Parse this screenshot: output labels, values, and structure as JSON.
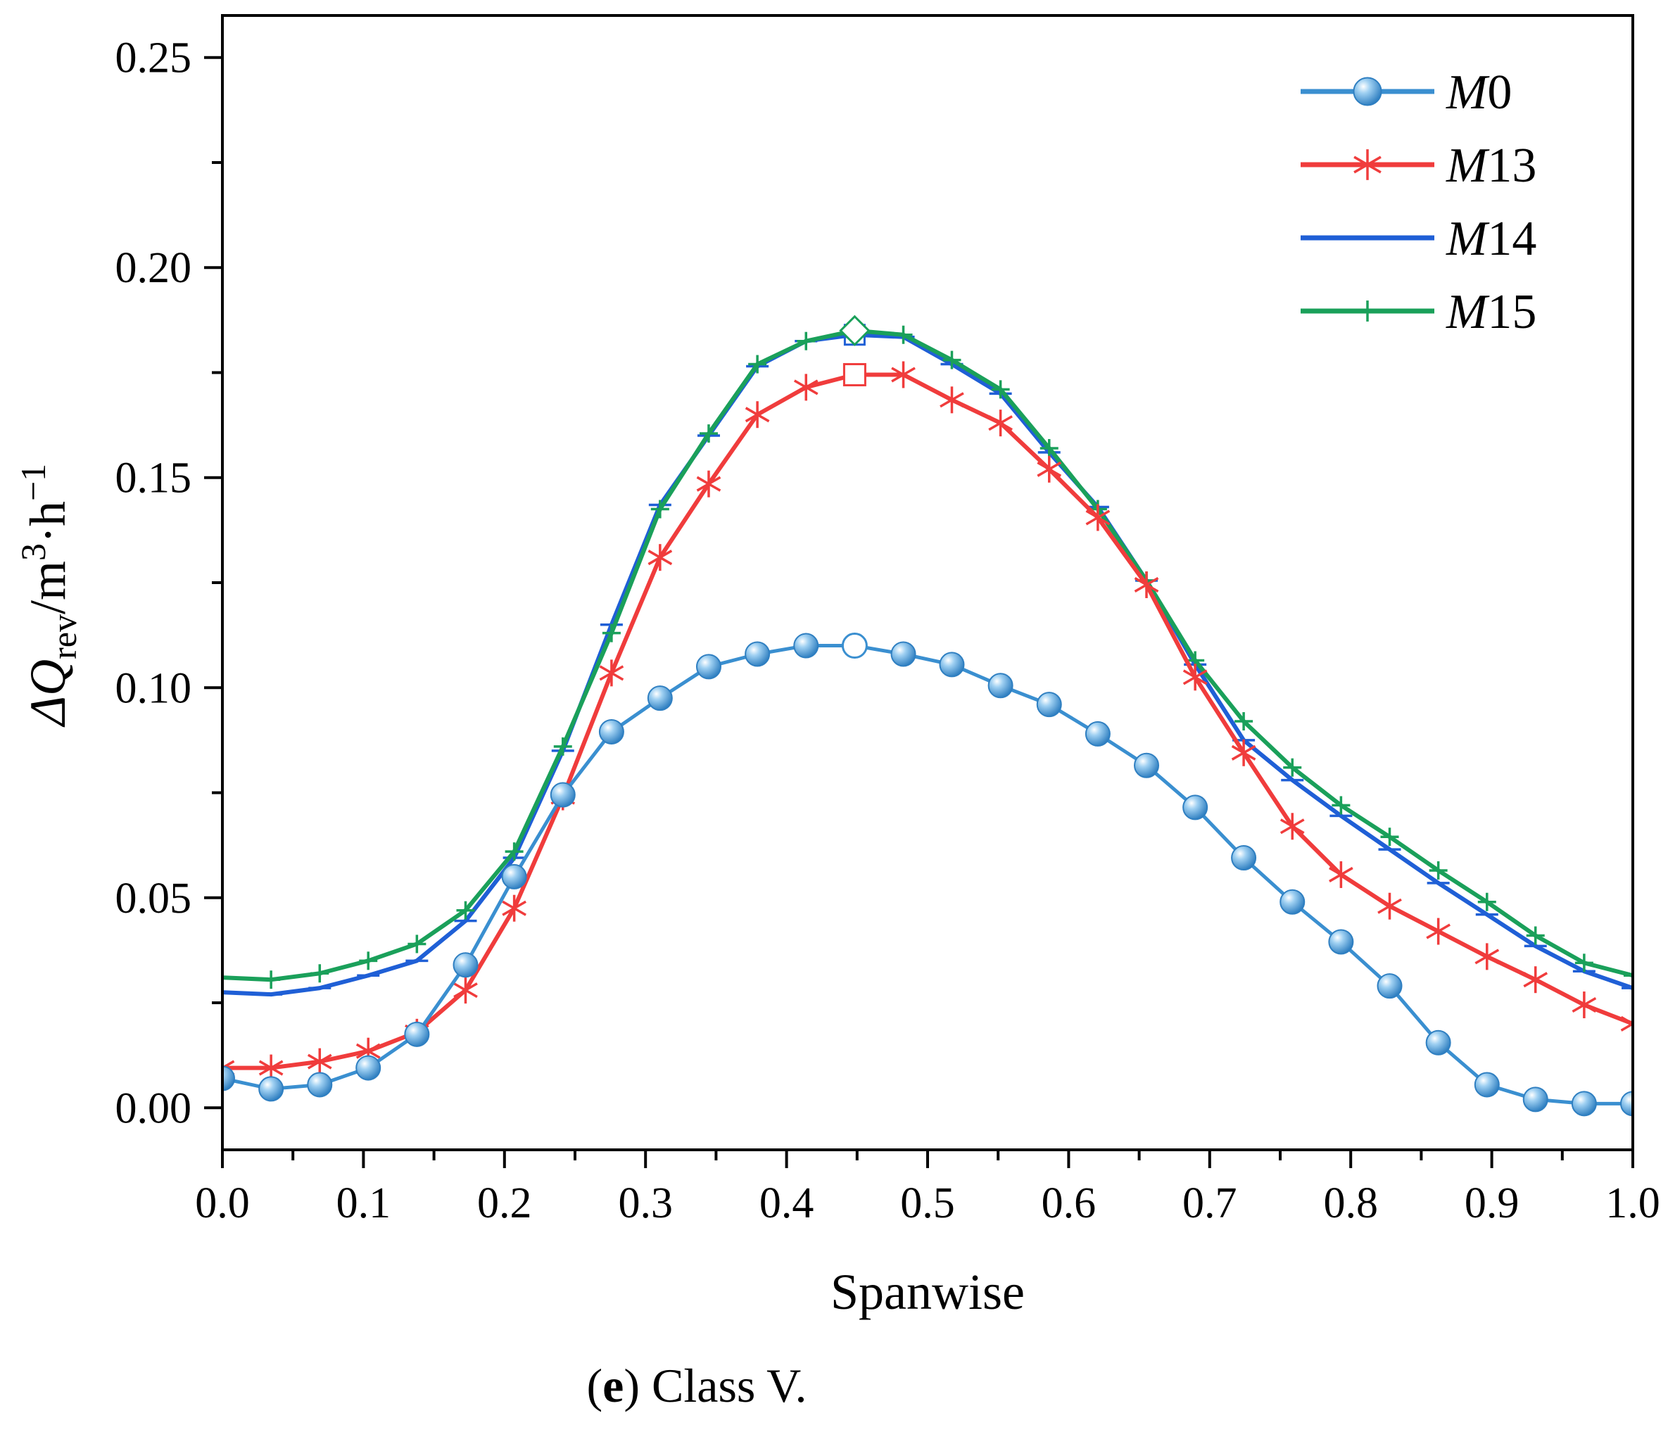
{
  "chart_data": {
    "type": "line",
    "xlabel": "Spanwise",
    "ylabel": {
      "prefix": "ΔQ",
      "subscript": "rev",
      "unit": "/m",
      "sup1": "3",
      "mid": "·h",
      "sup2": "−1"
    },
    "xlim": [
      0.0,
      1.0
    ],
    "ylim": [
      -0.01,
      0.26
    ],
    "xticks": [
      "0.0",
      "0.1",
      "0.2",
      "0.3",
      "0.4",
      "0.5",
      "0.6",
      "0.7",
      "0.8",
      "0.9",
      "1.0"
    ],
    "yticks": [
      "0.00",
      "0.05",
      "0.10",
      "0.15",
      "0.20",
      "0.25"
    ],
    "x": [
      0.0,
      0.0345,
      0.069,
      0.1034,
      0.1379,
      0.1724,
      0.2069,
      0.2414,
      0.2759,
      0.3103,
      0.3448,
      0.3793,
      0.4138,
      0.4483,
      0.4828,
      0.5172,
      0.5517,
      0.5862,
      0.6207,
      0.6552,
      0.6897,
      0.7241,
      0.7586,
      0.7931,
      0.8276,
      0.8621,
      0.8966,
      0.931,
      0.9655,
      1.0
    ],
    "series": [
      {
        "name": "M0",
        "name_italic": "M",
        "name_rest": "0",
        "color": "#3a8fd0",
        "marker": "sphere",
        "values": [
          0.007,
          0.0045,
          0.0055,
          0.0095,
          0.0175,
          0.034,
          0.055,
          0.0745,
          0.0895,
          0.0975,
          0.105,
          0.108,
          0.11,
          0.11,
          0.108,
          0.1055,
          0.1005,
          0.096,
          0.089,
          0.0815,
          0.0715,
          0.0595,
          0.049,
          0.0395,
          0.029,
          0.0155,
          0.0055,
          0.002,
          0.001,
          0.001
        ],
        "peak_index": 13
      },
      {
        "name": "M13",
        "name_italic": "M",
        "name_rest": "13",
        "color": "#f03c3c",
        "marker": "asterisk",
        "values": [
          0.0095,
          0.0095,
          0.011,
          0.0135,
          0.018,
          0.028,
          0.0475,
          0.074,
          0.1035,
          0.131,
          0.1485,
          0.165,
          0.1715,
          0.1745,
          0.1745,
          0.1685,
          0.163,
          0.152,
          0.1405,
          0.1245,
          0.1025,
          0.0845,
          0.067,
          0.0555,
          0.048,
          0.042,
          0.036,
          0.0305,
          0.0245,
          0.02
        ],
        "peak_index": 13
      },
      {
        "name": "M14",
        "name_italic": "M",
        "name_rest": "14",
        "color": "#1f5fd6",
        "marker": "hbar",
        "values": [
          0.0275,
          0.027,
          0.0285,
          0.0315,
          0.035,
          0.0445,
          0.0595,
          0.085,
          0.115,
          0.1435,
          0.16,
          0.1765,
          0.1825,
          0.184,
          0.1835,
          0.177,
          0.17,
          0.156,
          0.143,
          0.1255,
          0.1055,
          0.0875,
          0.078,
          0.0695,
          0.0615,
          0.0535,
          0.046,
          0.0385,
          0.0325,
          0.0285
        ],
        "peak_index": 13
      },
      {
        "name": "M15",
        "name_italic": "M",
        "name_rest": "15",
        "color": "#1aa05a",
        "marker": "plus",
        "values": [
          0.031,
          0.0305,
          0.032,
          0.035,
          0.039,
          0.047,
          0.061,
          0.086,
          0.113,
          0.1425,
          0.1605,
          0.177,
          0.1825,
          0.185,
          0.184,
          0.178,
          0.171,
          0.157,
          0.1425,
          0.1255,
          0.1065,
          0.092,
          0.081,
          0.072,
          0.0645,
          0.0565,
          0.049,
          0.041,
          0.0345,
          0.0315
        ],
        "peak_index": 13
      }
    ],
    "legend_position": "top-right"
  },
  "caption": {
    "letter": "e",
    "close_paren": ")",
    "text": "Class V."
  }
}
